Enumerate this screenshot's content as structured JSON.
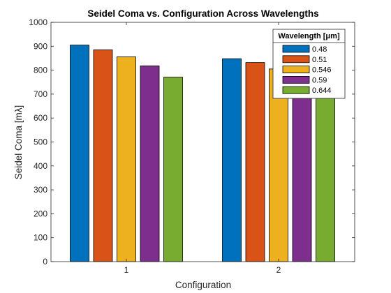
{
  "chart_data": {
    "type": "bar",
    "title": "Seidel Coma vs. Configuration Across Wavelengths",
    "xlabel": "Configuration",
    "ylabel": "Seidel Coma [mλ]",
    "categories": [
      "1",
      "2"
    ],
    "ylim": [
      0,
      1000
    ],
    "yticks": [
      0,
      100,
      200,
      300,
      400,
      500,
      600,
      700,
      800,
      900,
      1000
    ],
    "grid": false,
    "legend": {
      "title": "Wavelength [μm]",
      "location": "top-right"
    },
    "series": [
      {
        "name": "0.48",
        "color": "#0072BD",
        "values": [
          905,
          848
        ]
      },
      {
        "name": "0.51",
        "color": "#D95319",
        "values": [
          885,
          832
        ]
      },
      {
        "name": "0.546",
        "color": "#EDB120",
        "values": [
          856,
          805
        ]
      },
      {
        "name": "0.59",
        "color": "#7E2F8E",
        "values": [
          818,
          770
        ]
      },
      {
        "name": "0.644",
        "color": "#77AC30",
        "values": [
          771,
          730
        ]
      }
    ]
  }
}
